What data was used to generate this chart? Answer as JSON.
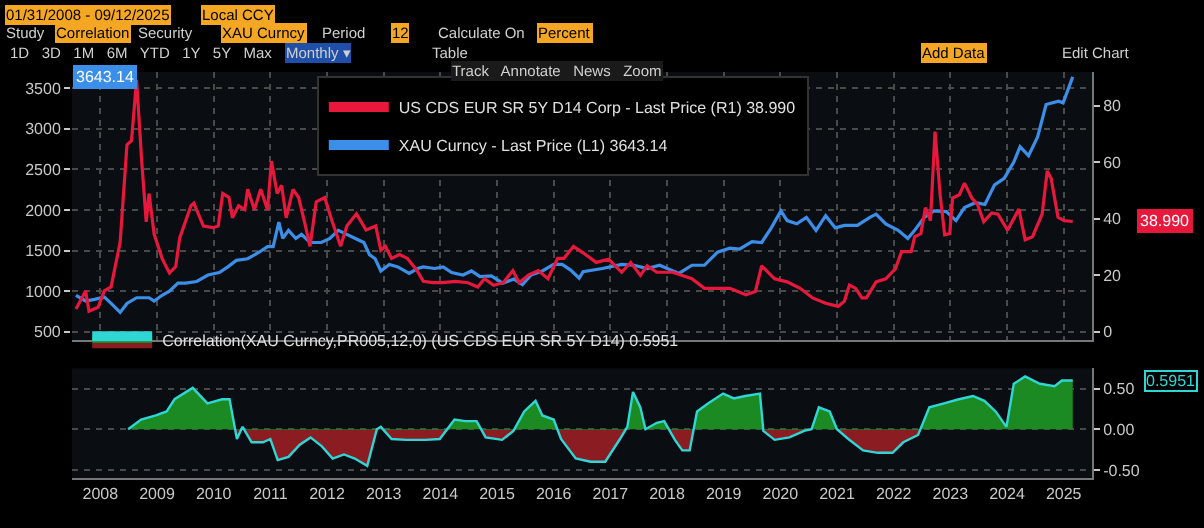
{
  "chart_data": [
    {
      "type": "line",
      "xlim": [
        2008,
        2026
      ],
      "ylim": [
        400,
        3700
      ],
      "yticks": [
        500,
        1000,
        1500,
        2000,
        2500,
        3000,
        3500
      ],
      "y2lim": [
        -3,
        92
      ],
      "y2ticks": [
        0,
        20,
        40,
        60,
        80
      ],
      "tick_labels": "y",
      "grid": true,
      "legend": "top",
      "series": [
        {
          "name": "US CDS EUR SR 5Y D14 Corp - Last Price (R1) 38.990",
          "color": "#e8173c",
          "axis": "y2",
          "x": [
            2008.07,
            2008.24,
            2008.3,
            2008.46,
            2008.57,
            2008.69,
            2008.85,
            2008.97,
            2009.05,
            2009.14,
            2009.23,
            2009.31,
            2009.36,
            2009.45,
            2009.59,
            2009.72,
            2009.83,
            2009.9,
            2010.1,
            2010.15,
            2010.32,
            2010.49,
            2010.58,
            2010.66,
            2010.77,
            2010.83,
            2010.94,
            2011.05,
            2011.1,
            2011.22,
            2011.33,
            2011.45,
            2011.52,
            2011.62,
            2011.7,
            2011.78,
            2011.9,
            2012.0,
            2012.12,
            2012.2,
            2012.31,
            2012.46,
            2012.57,
            2012.74,
            2012.85,
            2013.02,
            2013.19,
            2013.36,
            2013.45,
            2013.53,
            2013.64,
            2013.78,
            2013.92,
            2014.09,
            2014.2,
            2014.37,
            2014.54,
            2014.77,
            2014.99,
            2015.16,
            2015.28,
            2015.44,
            2015.61,
            2015.78,
            2015.89,
            2016.06,
            2016.23,
            2016.4,
            2016.57,
            2016.68,
            2016.85,
            2017.02,
            2017.25,
            2017.47,
            2017.7,
            2017.86,
            2018.03,
            2018.15,
            2018.32,
            2018.6,
            2018.94,
            2019.16,
            2019.61,
            2019.89,
            2020.06,
            2020.17,
            2020.4,
            2020.62,
            2020.85,
            2021.07,
            2021.3,
            2021.52,
            2021.63,
            2021.72,
            2021.83,
            2021.94,
            2022.02,
            2022.19,
            2022.36,
            2022.53,
            2022.64,
            2022.81,
            2022.87,
            2022.98,
            2023.06,
            2023.15,
            2023.23,
            2023.32,
            2023.4,
            2023.49,
            2023.54,
            2023.66,
            2023.75,
            2023.88,
            2023.98,
            2024.09,
            2024.23,
            2024.34,
            2024.51,
            2024.71,
            2024.82,
            2024.95,
            2025.12,
            2025.21,
            2025.28,
            2025.4,
            2025.51,
            2025.66
          ],
          "values": [
            8,
            14.4,
            7.2,
            8.6,
            14.4,
            15.8,
            31.7,
            66.2,
            67.6,
            89.2,
            60.4,
            38.9,
            48.9,
            34.5,
            25.9,
            20.7,
            23,
            33.1,
            44.6,
            45.5,
            37.4,
            36.8,
            37.4,
            48.9,
            47.5,
            40.3,
            44.6,
            43.2,
            50.4,
            43.2,
            50.4,
            43.2,
            60.4,
            48.9,
            51.8,
            40.3,
            50.4,
            47.5,
            37.4,
            30.2,
            46,
            47.5,
            40.3,
            30.2,
            37.4,
            41.7,
            36,
            37.4,
            28.8,
            30.2,
            25.9,
            27.3,
            25.9,
            21.6,
            17.8,
            17.3,
            17.3,
            17.8,
            17.3,
            15.8,
            18.7,
            16.4,
            17.3,
            21.6,
            17.3,
            20.1,
            21.6,
            18.7,
            25.9,
            25.9,
            30.2,
            27.9,
            24.5,
            25.6,
            21,
            24.5,
            19.9,
            23.3,
            21,
            21,
            18.7,
            15.3,
            15.3,
            13,
            14.2,
            23.3,
            18.7,
            17.6,
            15.3,
            11.9,
            10,
            8.9,
            10.7,
            16.5,
            15.3,
            11.9,
            11.9,
            17.6,
            18.7,
            22.2,
            28.3,
            28.3,
            33.6,
            34.7,
            43.9,
            39.3,
            70.9,
            48.5,
            34.3,
            34.7,
            47.3,
            48.5,
            52.6,
            47.3,
            45,
            38.9,
            42,
            41.6,
            35.9,
            43.4,
            32.5,
            33.6,
            41.6,
            56.9,
            54.2,
            40.5,
            39.3,
            39
          ]
        },
        {
          "name": "XAU Curncy - Last Price (L1) 3643.14",
          "color": "#3b8fe8",
          "axis": "y",
          "x": [
            2008.07,
            2008.24,
            2008.4,
            2008.57,
            2008.69,
            2008.85,
            2008.97,
            2009.14,
            2009.36,
            2009.45,
            2009.59,
            2009.72,
            2009.87,
            2010.0,
            2010.2,
            2010.4,
            2010.6,
            2010.75,
            2010.9,
            2011.1,
            2011.3,
            2011.45,
            2011.55,
            2011.65,
            2011.72,
            2011.82,
            2011.95,
            2012.05,
            2012.2,
            2012.4,
            2012.55,
            2012.7,
            2012.85,
            2013.0,
            2013.15,
            2013.25,
            2013.35,
            2013.45,
            2013.6,
            2013.75,
            2013.95,
            2014.1,
            2014.2,
            2014.4,
            2014.55,
            2014.7,
            2014.9,
            2015.05,
            2015.2,
            2015.4,
            2015.6,
            2015.8,
            2015.95,
            2016.1,
            2016.3,
            2016.5,
            2016.65,
            2016.8,
            2016.95,
            2017.02,
            2017.36,
            2017.7,
            2017.92,
            2018.15,
            2018.37,
            2018.71,
            2018.94,
            2019.16,
            2019.39,
            2019.61,
            2019.78,
            2020.0,
            2020.17,
            2020.34,
            2020.51,
            2020.62,
            2020.79,
            2020.96,
            2021.13,
            2021.3,
            2021.47,
            2021.63,
            2021.86,
            2022.08,
            2022.19,
            2022.36,
            2022.58,
            2022.75,
            2022.87,
            2023.04,
            2023.21,
            2023.43,
            2023.6,
            2023.75,
            2023.94,
            2024.11,
            2024.28,
            2024.45,
            2024.62,
            2024.73,
            2024.88,
            2025.04,
            2025.19,
            2025.41,
            2025.49,
            2025.66
          ],
          "values": [
            950,
            880,
            900,
            930,
            850,
            740,
            850,
            920,
            920,
            880,
            950,
            1000,
            1100,
            1100,
            1120,
            1200,
            1230,
            1300,
            1380,
            1400,
            1480,
            1550,
            1550,
            1850,
            1650,
            1750,
            1650,
            1700,
            1600,
            1600,
            1650,
            1750,
            1700,
            1650,
            1600,
            1450,
            1400,
            1250,
            1330,
            1300,
            1220,
            1280,
            1300,
            1280,
            1300,
            1230,
            1200,
            1250,
            1180,
            1190,
            1100,
            1150,
            1080,
            1200,
            1250,
            1330,
            1330,
            1260,
            1160,
            1240,
            1280,
            1330,
            1320,
            1280,
            1320,
            1220,
            1320,
            1320,
            1480,
            1530,
            1520,
            1610,
            1600,
            1780,
            1990,
            1870,
            1830,
            1910,
            1750,
            1930,
            1780,
            1810,
            1810,
            1910,
            1950,
            1830,
            1750,
            1650,
            1750,
            1910,
            1990,
            1980,
            1870,
            2030,
            2090,
            2070,
            2310,
            2390,
            2590,
            2780,
            2670,
            2900,
            3300,
            3340,
            3320,
            3640
          ]
        }
      ],
      "annotations": [
        "38.990",
        "3643.14"
      ]
    },
    {
      "type": "area",
      "xlim": [
        2008,
        2026
      ],
      "ylim": [
        -0.6,
        0.75
      ],
      "yticks": [
        {
          "value": -0.5,
          "label": "-0.50"
        },
        {
          "value": 0,
          "label": "0.00"
        },
        {
          "value": 0.5,
          "label": "0.50"
        }
      ],
      "xticks": [
        {
          "value": 2008.5,
          "label": "2008"
        },
        {
          "value": 2009.5,
          "label": "2009"
        },
        {
          "value": 2010.5,
          "label": "2010"
        },
        {
          "value": 2011.5,
          "label": "2011"
        },
        {
          "value": 2012.5,
          "label": "2012"
        },
        {
          "value": 2013.5,
          "label": "2013"
        },
        {
          "value": 2014.5,
          "label": "2014"
        },
        {
          "value": 2015.5,
          "label": "2015"
        },
        {
          "value": 2016.5,
          "label": "2016"
        },
        {
          "value": 2017.5,
          "label": "2017"
        },
        {
          "value": 2018.5,
          "label": "2018"
        },
        {
          "value": 2019.5,
          "label": "2019"
        },
        {
          "value": 2020.5,
          "label": "2020"
        },
        {
          "value": 2021.5,
          "label": "2021"
        },
        {
          "value": 2022.5,
          "label": "2022"
        },
        {
          "value": 2023.5,
          "label": "2023"
        },
        {
          "value": 2024.5,
          "label": "2024"
        },
        {
          "value": 2025.5,
          "label": "2025"
        }
      ],
      "grid": "y",
      "legend": "top left",
      "series": [
        {
          "name": "Correlation(XAU Curncy,PR005,12,0) (US CDS EUR SR 5Y D14) 0.5951",
          "color": "#30d5d5",
          "x": [
            2008.99,
            2009.22,
            2009.48,
            2009.67,
            2009.81,
            2010.13,
            2010.39,
            2010.65,
            2010.78,
            2010.91,
            2011.01,
            2011.17,
            2011.37,
            2011.5,
            2011.63,
            2011.82,
            2012.02,
            2012.21,
            2012.41,
            2012.6,
            2012.8,
            2012.99,
            2013.21,
            2013.38,
            2013.45,
            2013.64,
            2013.9,
            2014.23,
            2014.49,
            2014.75,
            2014.94,
            2015.14,
            2015.3,
            2015.59,
            2015.79,
            2015.98,
            2016.18,
            2016.3,
            2016.5,
            2016.63,
            2016.89,
            2017.15,
            2017.41,
            2017.67,
            2017.8,
            2017.9,
            2018.03,
            2018.12,
            2018.32,
            2018.45,
            2018.64,
            2018.77,
            2018.9,
            2019.03,
            2019.23,
            2019.49,
            2019.68,
            2019.88,
            2020.14,
            2020.2,
            2020.4,
            2020.66,
            2020.92,
            2021.05,
            2021.18,
            2021.37,
            2021.5,
            2021.7,
            2021.96,
            2022.22,
            2022.48,
            2022.67,
            2022.93,
            2023.13,
            2023.39,
            2023.65,
            2023.9,
            2024.1,
            2024.3,
            2024.49,
            2024.62,
            2024.82,
            2025.08,
            2025.34,
            2025.47,
            2025.66
          ],
          "values": [
            0,
            0.12,
            0.17,
            0.22,
            0.37,
            0.51,
            0.32,
            0.37,
            0.37,
            -0.12,
            0.03,
            -0.16,
            -0.16,
            -0.12,
            -0.38,
            -0.34,
            -0.19,
            -0.1,
            -0.21,
            -0.36,
            -0.31,
            -0.36,
            -0.45,
            0,
            0.03,
            -0.12,
            -0.13,
            -0.13,
            -0.12,
            0.12,
            0.1,
            0.1,
            -0.1,
            -0.13,
            -0.02,
            0.22,
            0.35,
            0.17,
            0.12,
            -0.12,
            -0.36,
            -0.4,
            -0.4,
            -0.12,
            0.03,
            0.46,
            0.27,
            0,
            0.08,
            0.1,
            -0.13,
            -0.26,
            -0.26,
            0.22,
            0.32,
            0.44,
            0.38,
            0.41,
            0.44,
            -0.02,
            -0.13,
            -0.1,
            -0.02,
            0,
            0.27,
            0.22,
            0,
            -0.12,
            -0.26,
            -0.29,
            -0.29,
            -0.16,
            -0.07,
            0.27,
            0.32,
            0.37,
            0.41,
            0.35,
            0.22,
            0.03,
            0.56,
            0.65,
            0.56,
            0.53,
            0.6,
            0.6
          ]
        }
      ],
      "annotations": [
        "0.5951"
      ]
    },
    {
      "type": "other",
      "annotations": [
        "01/31/2008 - 09/12/2025",
        "Local CCY",
        "Study",
        "Correlation",
        "Security",
        "XAU Curncy",
        "Period",
        "12",
        "Calculate On",
        "Percent",
        "1D   3D   1M   6M   YTD   1Y   5Y   Max",
        "Monthly ▾",
        "Table",
        "Add Data",
        "Edit Chart",
        "Track   Annotate   News   Zoom"
      ]
    }
  ]
}
